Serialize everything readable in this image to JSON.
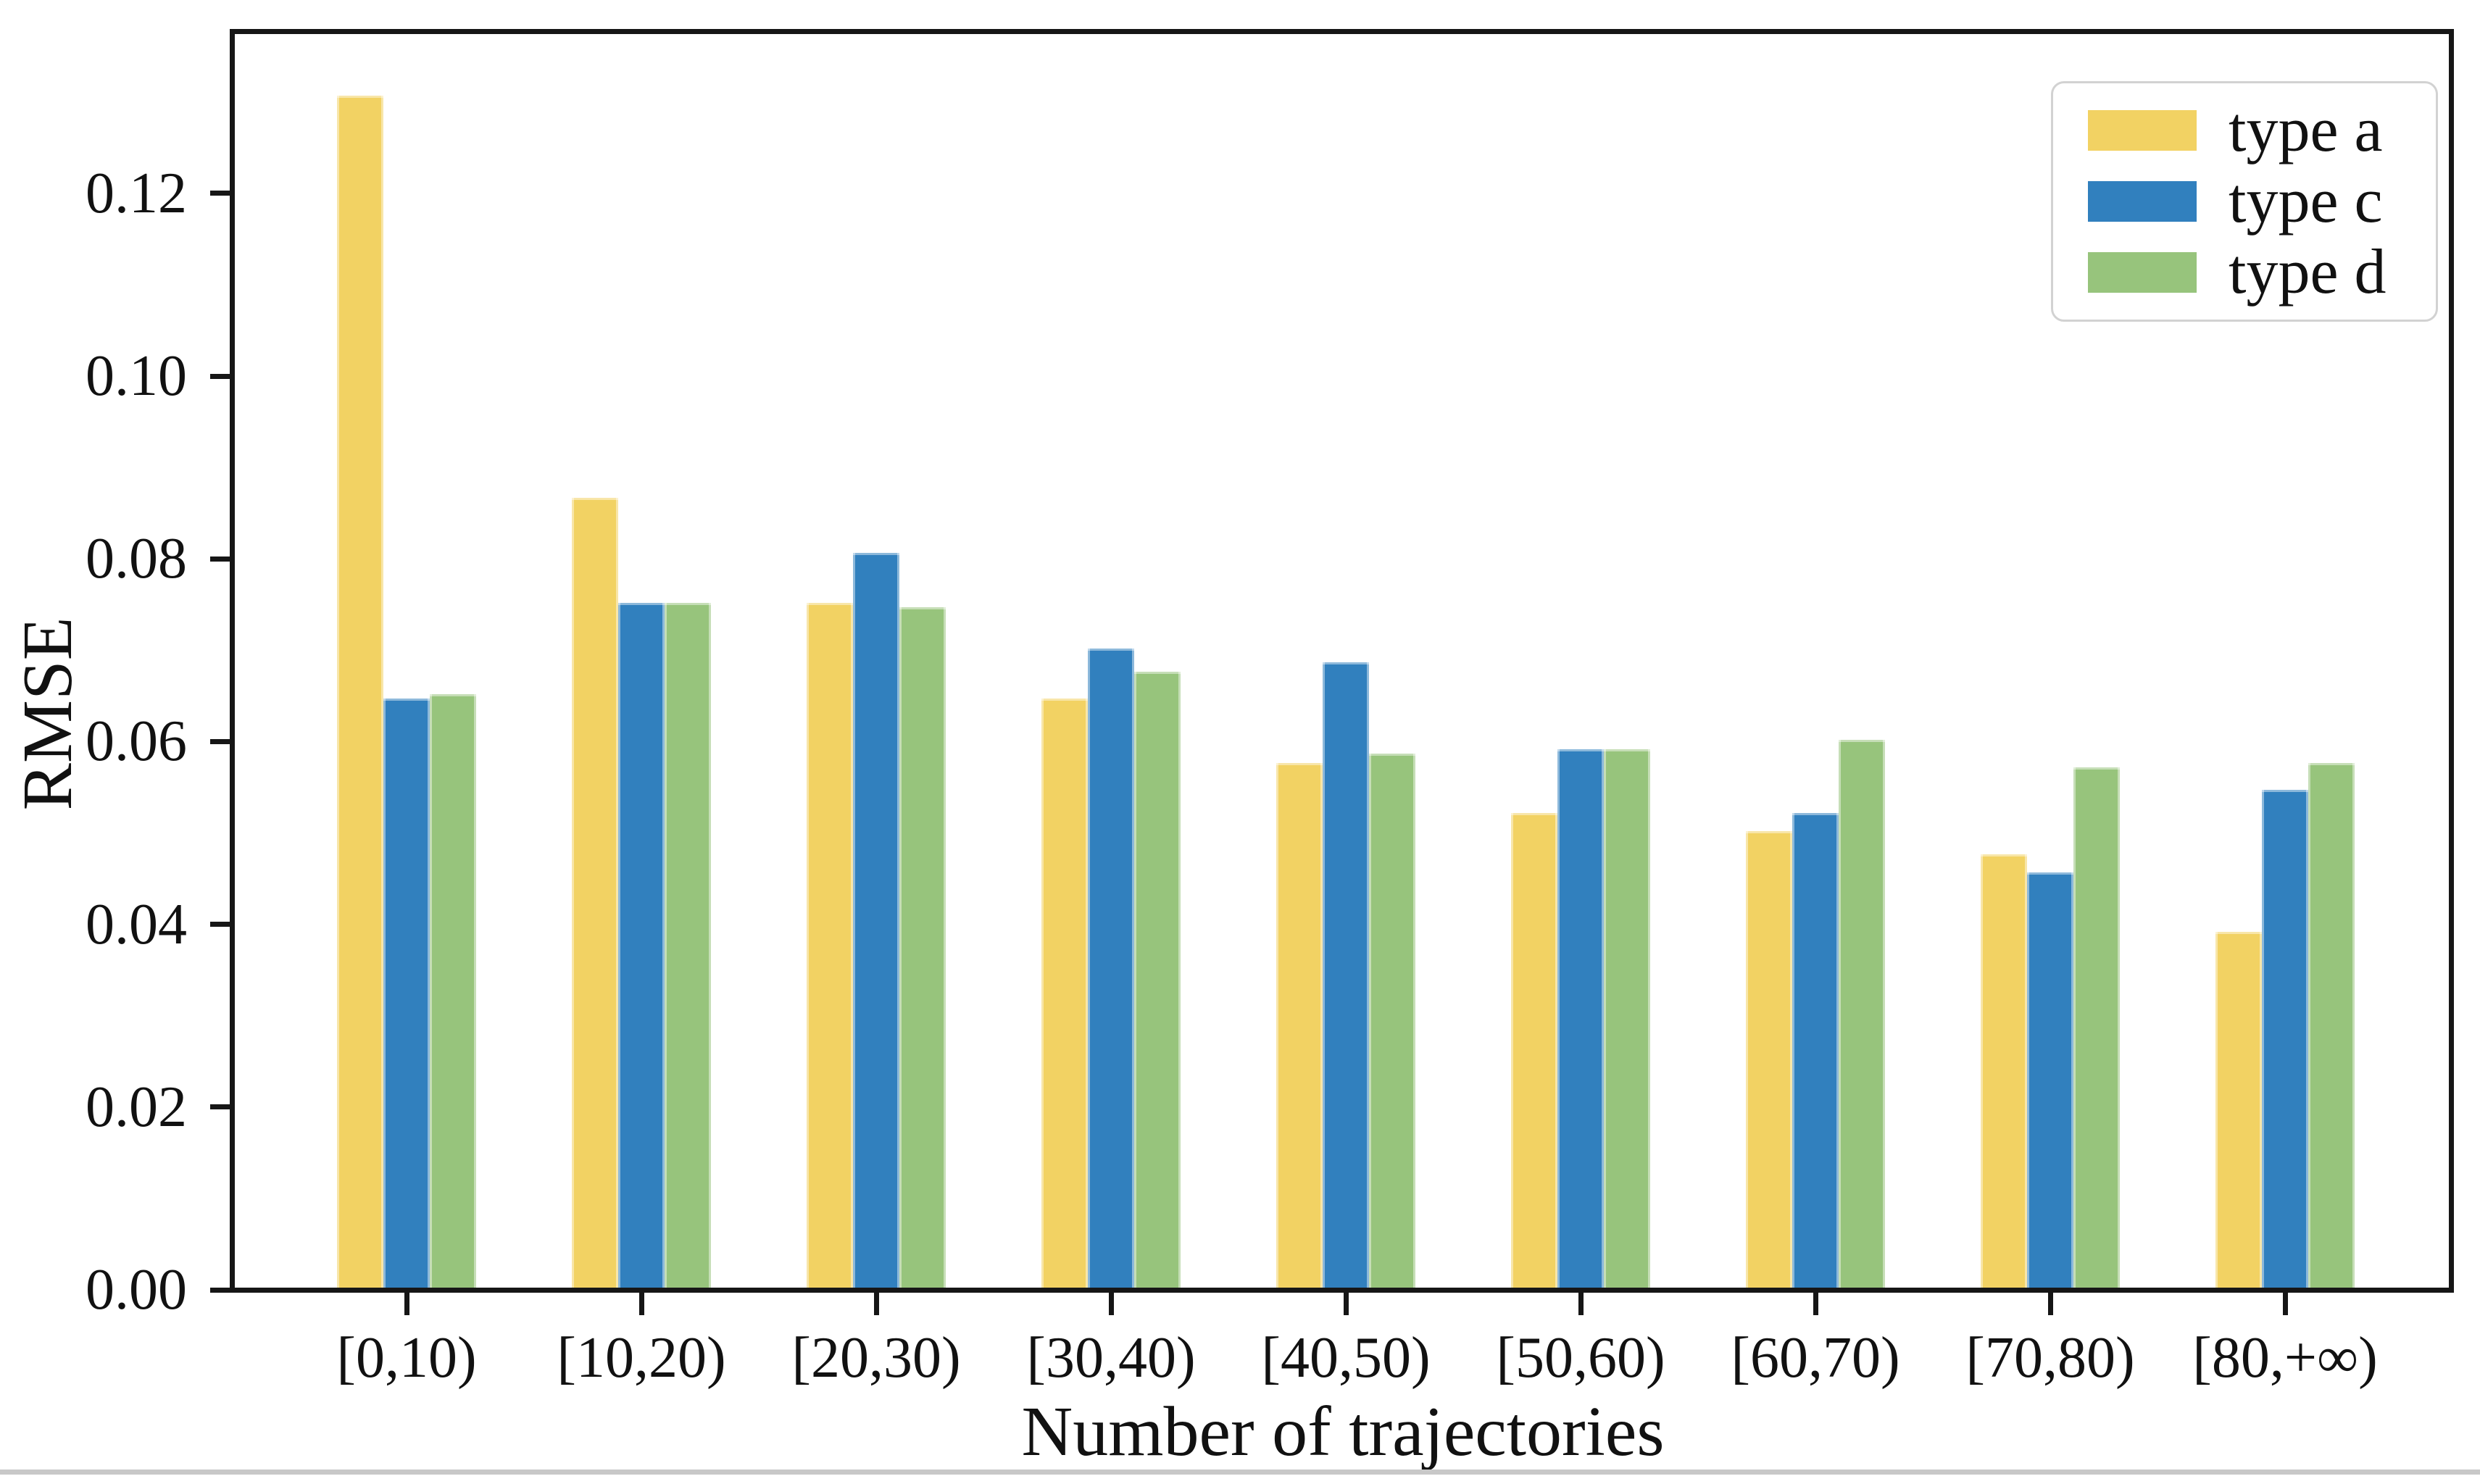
{
  "figure": {
    "ylabel": "RMSE",
    "xlabel": "Number of trajectories"
  },
  "chart_data": {
    "type": "bar",
    "title": "",
    "xlabel": "Number of trajectories",
    "ylabel": "RMSE",
    "categories": [
      "[0,10)",
      "[10,20)",
      "[20,30)",
      "[30,40)",
      "[40,50)",
      "[50,60)",
      "[60,70)",
      "[70,80)",
      "[80,+∞)"
    ],
    "series": [
      {
        "name": "type a",
        "color": "#F2D263",
        "values": [
          0.131,
          0.087,
          0.0755,
          0.065,
          0.058,
          0.0525,
          0.0505,
          0.048,
          0.0395
        ]
      },
      {
        "name": "type c",
        "color": "#3180BE",
        "values": [
          0.065,
          0.0755,
          0.081,
          0.0705,
          0.069,
          0.0595,
          0.0525,
          0.046,
          0.055
        ]
      },
      {
        "name": "type d",
        "color": "#97C47C",
        "values": [
          0.0655,
          0.0755,
          0.075,
          0.068,
          0.059,
          0.0595,
          0.0605,
          0.0575,
          0.058
        ]
      }
    ],
    "yticks": {
      "labels": [
        "0.00",
        "0.02",
        "0.04",
        "0.06",
        "0.08",
        "0.10",
        "0.12"
      ],
      "values": [
        0.0,
        0.02,
        0.04,
        0.06,
        0.08,
        0.1,
        0.12
      ]
    },
    "ylim": [
      0,
      0.1377
    ],
    "grid": false,
    "legend_position": "upper right",
    "frame_color": "#161616"
  }
}
